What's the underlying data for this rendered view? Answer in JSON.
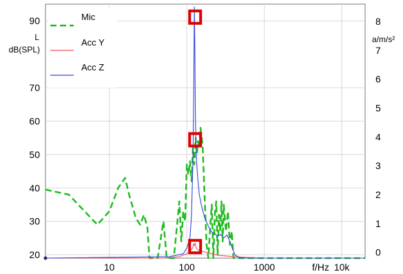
{
  "chart_data": {
    "type": "line",
    "title": "",
    "xlabel": "f/Hz",
    "ylabel_left_top": "L",
    "ylabel_left": "dB(SPL)",
    "ylabel_right": "a/m/s²",
    "x_scale": "log",
    "xlim": [
      1.5,
      20000
    ],
    "ylim_left": [
      19,
      95
    ],
    "ylim_right": [
      -0.2,
      8.6
    ],
    "x_ticks": [
      {
        "value": 10,
        "label": "10"
      },
      {
        "value": 100,
        "label": "100"
      },
      {
        "value": 1000,
        "label": "1000"
      },
      {
        "value": 10000,
        "label": "10k"
      }
    ],
    "y_ticks_left": [
      {
        "value": 90,
        "label": "90"
      },
      {
        "value": 70,
        "label": "70"
      },
      {
        "value": 60,
        "label": "60"
      },
      {
        "value": 50,
        "label": "50"
      },
      {
        "value": 40,
        "label": "40"
      },
      {
        "value": 30,
        "label": "30"
      },
      {
        "value": 20,
        "label": "20"
      }
    ],
    "y_ticks_right": [
      {
        "value": 8,
        "label": "8"
      },
      {
        "value": 7,
        "label": "7"
      },
      {
        "value": 6,
        "label": "6"
      },
      {
        "value": 5,
        "label": "5"
      },
      {
        "value": 4,
        "label": "4"
      },
      {
        "value": 3,
        "label": "3"
      },
      {
        "value": 2,
        "label": "2"
      },
      {
        "value": 1,
        "label": "1"
      },
      {
        "value": 0,
        "label": "0"
      }
    ],
    "grid": true,
    "legend_position": "top-left",
    "series": [
      {
        "name": "Mic",
        "color": "#22bb22",
        "style": "dashed",
        "axis": "left",
        "x": [
          1.5,
          3,
          7,
          10,
          13,
          16,
          18,
          22,
          25,
          28,
          31,
          33,
          36,
          42,
          50,
          55,
          58,
          62,
          68,
          75,
          80,
          85,
          90,
          95,
          100,
          105,
          110,
          115,
          120,
          125,
          130,
          135,
          140,
          145,
          150,
          160,
          170,
          180,
          190,
          200,
          210,
          220,
          230,
          240,
          250,
          260,
          270,
          280,
          290,
          300,
          320,
          340,
          360,
          380,
          400,
          420,
          450,
          500,
          700,
          2000,
          20000
        ],
        "y": [
          39.5,
          38,
          29,
          33,
          40,
          43,
          38,
          31,
          29,
          32,
          28,
          18,
          17,
          17,
          30,
          17,
          17,
          17,
          17,
          29,
          36,
          24,
          33,
          30,
          47,
          44,
          48,
          42,
          52,
          47,
          55,
          50,
          54,
          52,
          58,
          53,
          37,
          23,
          17,
          28,
          35,
          19,
          32,
          36,
          20,
          32,
          27,
          36,
          24,
          35,
          27,
          33,
          23,
          27,
          18,
          17,
          17,
          17,
          17,
          17,
          17
        ]
      },
      {
        "name": "Acc Y",
        "color": "#ee5555",
        "style": "solid",
        "axis": "right",
        "x": [
          1.5,
          50,
          80,
          100,
          110,
          115,
          120,
          122,
          125,
          128,
          130,
          135,
          140,
          150,
          180,
          250,
          400,
          1000,
          20000
        ],
        "y": [
          -0.2,
          -0.2,
          -0.15,
          -0.05,
          0.05,
          0.1,
          0.18,
          0.3,
          0.24,
          0.32,
          0.2,
          0.12,
          0.08,
          0.05,
          0.0,
          -0.1,
          -0.15,
          -0.2,
          -0.2
        ]
      },
      {
        "name": "Acc Z",
        "color": "#3344dd",
        "style": "solid",
        "axis": "right",
        "x": [
          1.5,
          60,
          90,
          100,
          110,
          115,
          120,
          123,
          125,
          127,
          129,
          131,
          134,
          138,
          145,
          155,
          170,
          190,
          210,
          230,
          250,
          270,
          300,
          330,
          350,
          380,
          420,
          500,
          1000,
          20000
        ],
        "y": [
          -0.2,
          -0.15,
          -0.05,
          0.15,
          0.5,
          1.3,
          3.2,
          5.8,
          8.5,
          7.2,
          4.8,
          3.8,
          3.1,
          2.6,
          2.0,
          1.6,
          1.2,
          0.9,
          0.7,
          0.65,
          0.55,
          0.62,
          0.5,
          0.6,
          0.45,
          0.2,
          -0.1,
          -0.2,
          -0.2,
          -0.2
        ]
      }
    ],
    "annotations": [
      {
        "type": "box",
        "x": 128,
        "y_axis": "right",
        "y": 8.15,
        "color": "#dd0000"
      },
      {
        "type": "box",
        "x": 128,
        "y_axis": "right",
        "y": 3.9,
        "color": "#dd0000"
      },
      {
        "type": "box",
        "x": 128,
        "y_axis": "right",
        "y": 0.2,
        "color": "#dd0000"
      }
    ]
  }
}
